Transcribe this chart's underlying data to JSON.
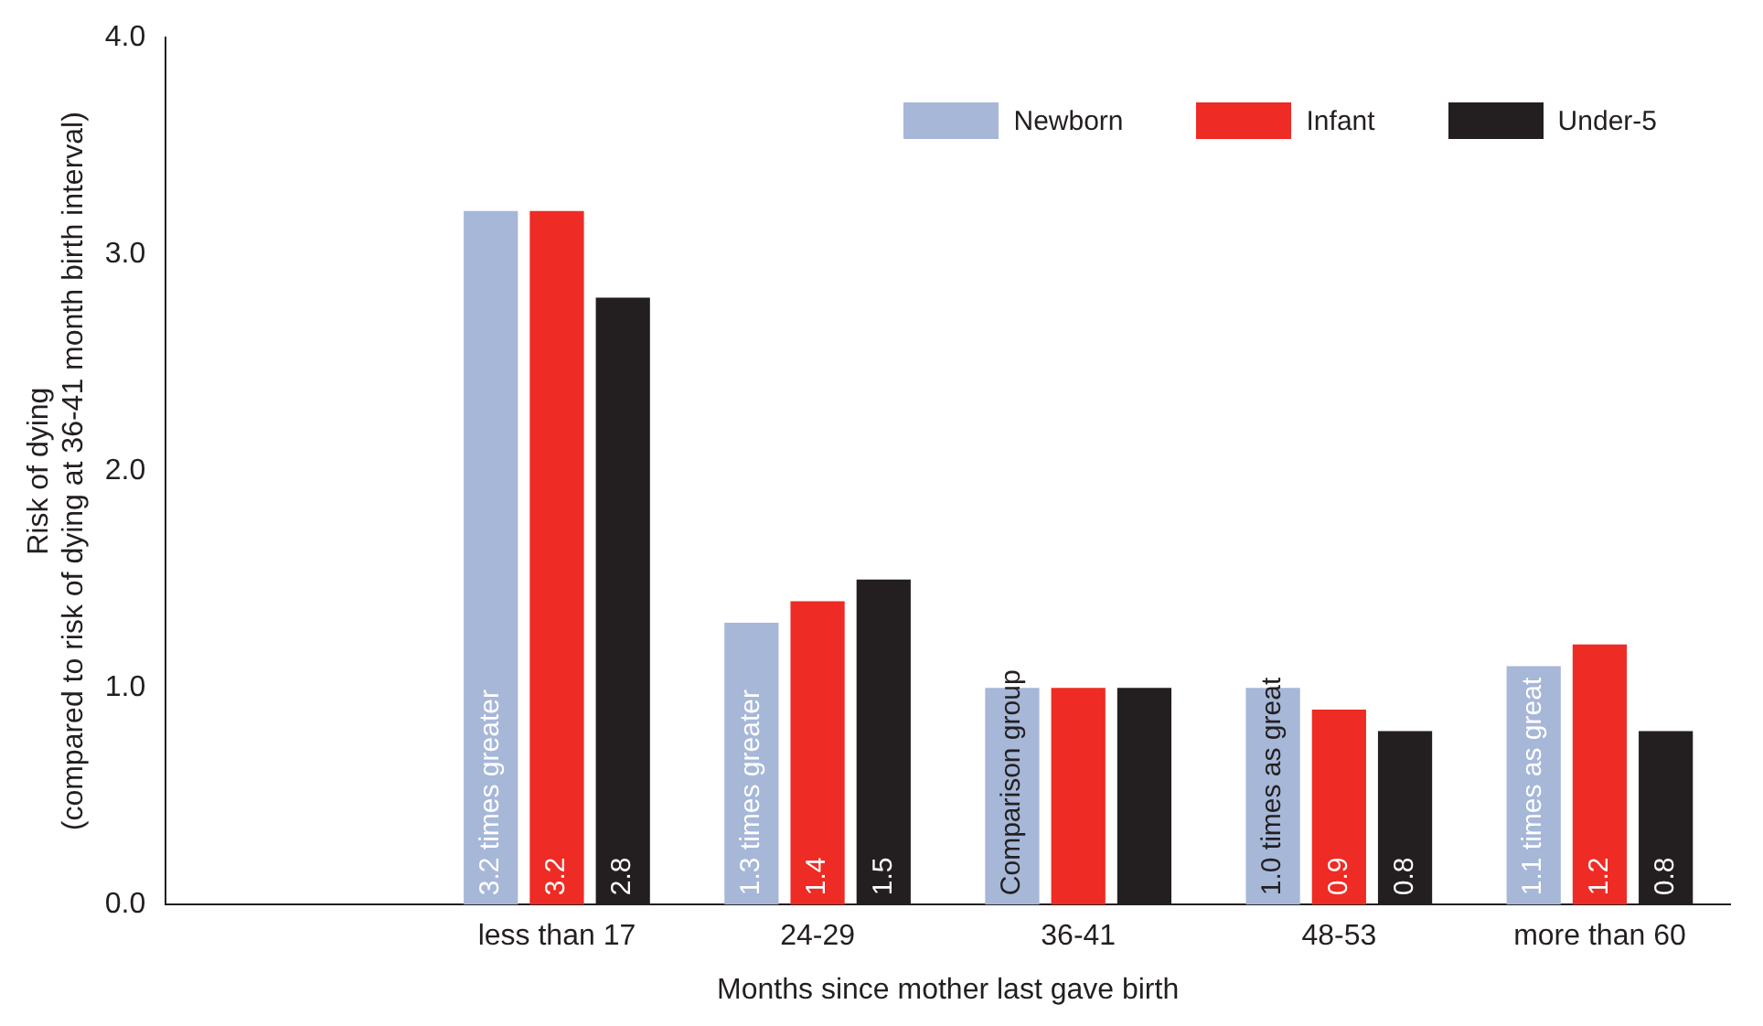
{
  "chart_data": {
    "type": "bar",
    "xlabel": "Months since mother last gave birth",
    "ylabel": "Risk of dying\n(compared to risk of dying at 36-41 month birth interval)",
    "categories": [
      null,
      "less than 17",
      "24-29",
      "36-41",
      "48-53",
      "more than 60"
    ],
    "series": [
      {
        "name": "Newborn",
        "color": "#a6b7d8",
        "values": [
          null,
          3.2,
          1.3,
          1.0,
          1.0,
          1.1
        ],
        "value_labels": [
          null,
          "3.2 times greater",
          "1.3 times greater",
          "Comparison group",
          "1.0 times as great",
          "1.1 times as great"
        ]
      },
      {
        "name": "Infant",
        "color": "#ee2b24",
        "values": [
          null,
          3.2,
          1.4,
          1.0,
          0.9,
          1.2
        ],
        "value_labels": [
          null,
          "3.2",
          "1.4",
          null,
          "0.9",
          "1.2"
        ]
      },
      {
        "name": "Under-5",
        "color": "#231f20",
        "values": [
          null,
          2.8,
          1.5,
          1.0,
          0.8,
          0.8
        ],
        "value_labels": [
          null,
          "2.8",
          "1.5",
          null,
          "0.8",
          "0.8"
        ]
      }
    ],
    "ylim": [
      0,
      4
    ],
    "yticks": [
      {
        "value": 0,
        "label": "0.0"
      },
      {
        "value": 1,
        "label": "1.0"
      },
      {
        "value": 2,
        "label": "2.0"
      },
      {
        "value": 3,
        "label": "3.0"
      },
      {
        "value": 4,
        "label": "4.0"
      }
    ],
    "grid": false,
    "legend": "top right"
  }
}
